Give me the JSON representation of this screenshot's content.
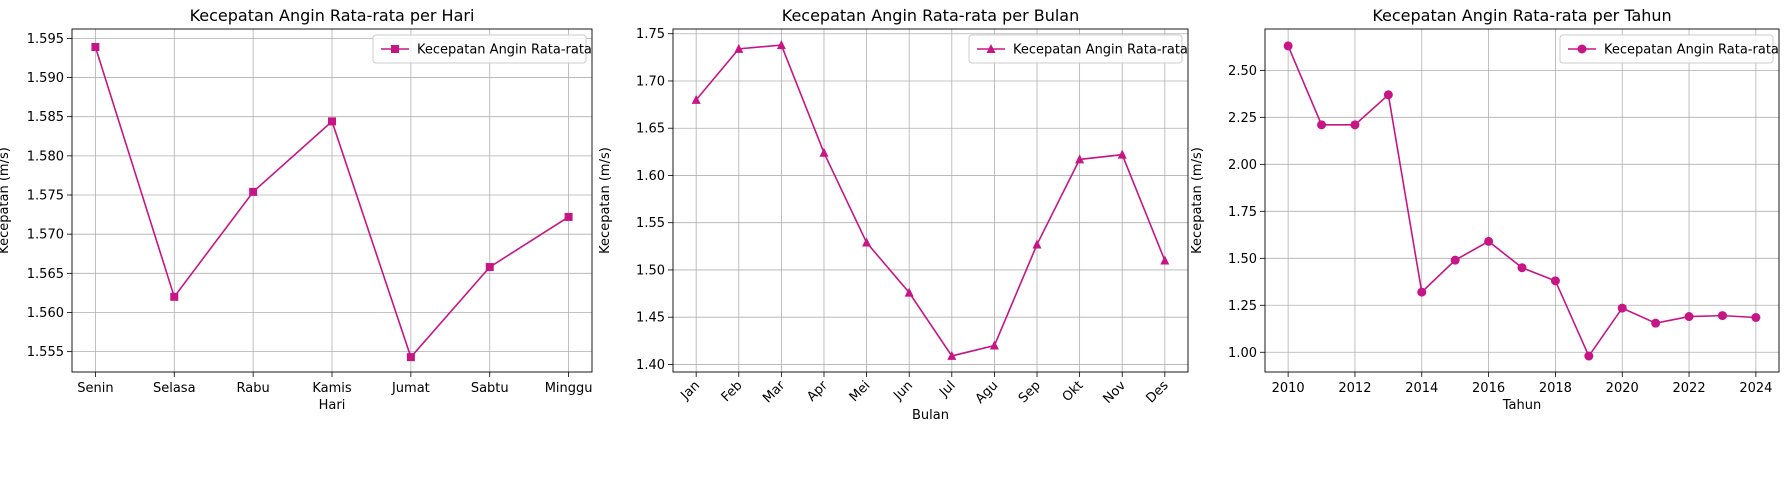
{
  "chart_data": [
    {
      "type": "line",
      "title": "Kecepatan Angin Rata-rata per Hari",
      "xlabel": "Hari",
      "ylabel": "Kecepatan (m/s)",
      "categories": [
        "Senin",
        "Selasa",
        "Rabu",
        "Kamis",
        "Jumat",
        "Sabtu",
        "Minggu"
      ],
      "ylim": [
        1.5524,
        1.5962
      ],
      "yticks": [
        1.555,
        1.56,
        1.565,
        1.57,
        1.575,
        1.58,
        1.585,
        1.59,
        1.595
      ],
      "ytick_labels": [
        "1.555",
        "1.560",
        "1.565",
        "1.570",
        "1.575",
        "1.580",
        "1.585",
        "1.590",
        "1.595"
      ],
      "xtick_rotation": 0,
      "marker": "square",
      "color": "#c71585",
      "grid": true,
      "legend_position": "top-right",
      "series": [
        {
          "name": "Kecepatan Angin Rata-rata",
          "values": [
            1.5939,
            1.562,
            1.5754,
            1.5844,
            1.5543,
            1.5658,
            1.5722
          ]
        }
      ]
    },
    {
      "type": "line",
      "title": "Kecepatan Angin Rata-rata per Bulan",
      "xlabel": "Bulan",
      "ylabel": "Kecepatan (m/s)",
      "categories": [
        "Jan",
        "Feb",
        "Mar",
        "Apr",
        "Mei",
        "Jun",
        "Jul",
        "Agu",
        "Sep",
        "Okt",
        "Nov",
        "Des"
      ],
      "ylim": [
        1.392,
        1.755
      ],
      "yticks": [
        1.4,
        1.45,
        1.5,
        1.55,
        1.6,
        1.65,
        1.7,
        1.75
      ],
      "ytick_labels": [
        "1.40",
        "1.45",
        "1.50",
        "1.55",
        "1.60",
        "1.65",
        "1.70",
        "1.75"
      ],
      "xtick_rotation": -45,
      "marker": "triangle",
      "color": "#c71585",
      "grid": true,
      "legend_position": "top-right",
      "series": [
        {
          "name": "Kecepatan Angin Rata-rata",
          "values": [
            1.68,
            1.734,
            1.738,
            1.624,
            1.529,
            1.476,
            1.409,
            1.42,
            1.527,
            1.617,
            1.622,
            1.51
          ]
        }
      ]
    },
    {
      "type": "line",
      "title": "Kecepatan Angin Rata-rata per Tahun",
      "xlabel": "Tahun",
      "ylabel": "Kecepatan (m/s)",
      "categories": [
        "2010",
        "2011",
        "2012",
        "2013",
        "2014",
        "2015",
        "2016",
        "2017",
        "2018",
        "2019",
        "2020",
        "2021",
        "2022",
        "2023",
        "2024"
      ],
      "xticks_shown": [
        "2010",
        "2012",
        "2014",
        "2016",
        "2018",
        "2020",
        "2022",
        "2024"
      ],
      "ylim": [
        0.895,
        2.72
      ],
      "yticks": [
        1.0,
        1.25,
        1.5,
        1.75,
        2.0,
        2.25,
        2.5
      ],
      "ytick_labels": [
        "1.00",
        "1.25",
        "1.50",
        "1.75",
        "2.00",
        "2.25",
        "2.50"
      ],
      "xtick_rotation": 0,
      "marker": "circle",
      "color": "#c71585",
      "grid": true,
      "legend_position": "top-right",
      "series": [
        {
          "name": "Kecepatan Angin Rata-rata",
          "values": [
            2.63,
            2.21,
            2.21,
            2.37,
            1.32,
            1.49,
            1.59,
            1.45,
            1.38,
            0.98,
            1.235,
            1.155,
            1.19,
            1.195,
            1.185
          ]
        }
      ]
    }
  ]
}
